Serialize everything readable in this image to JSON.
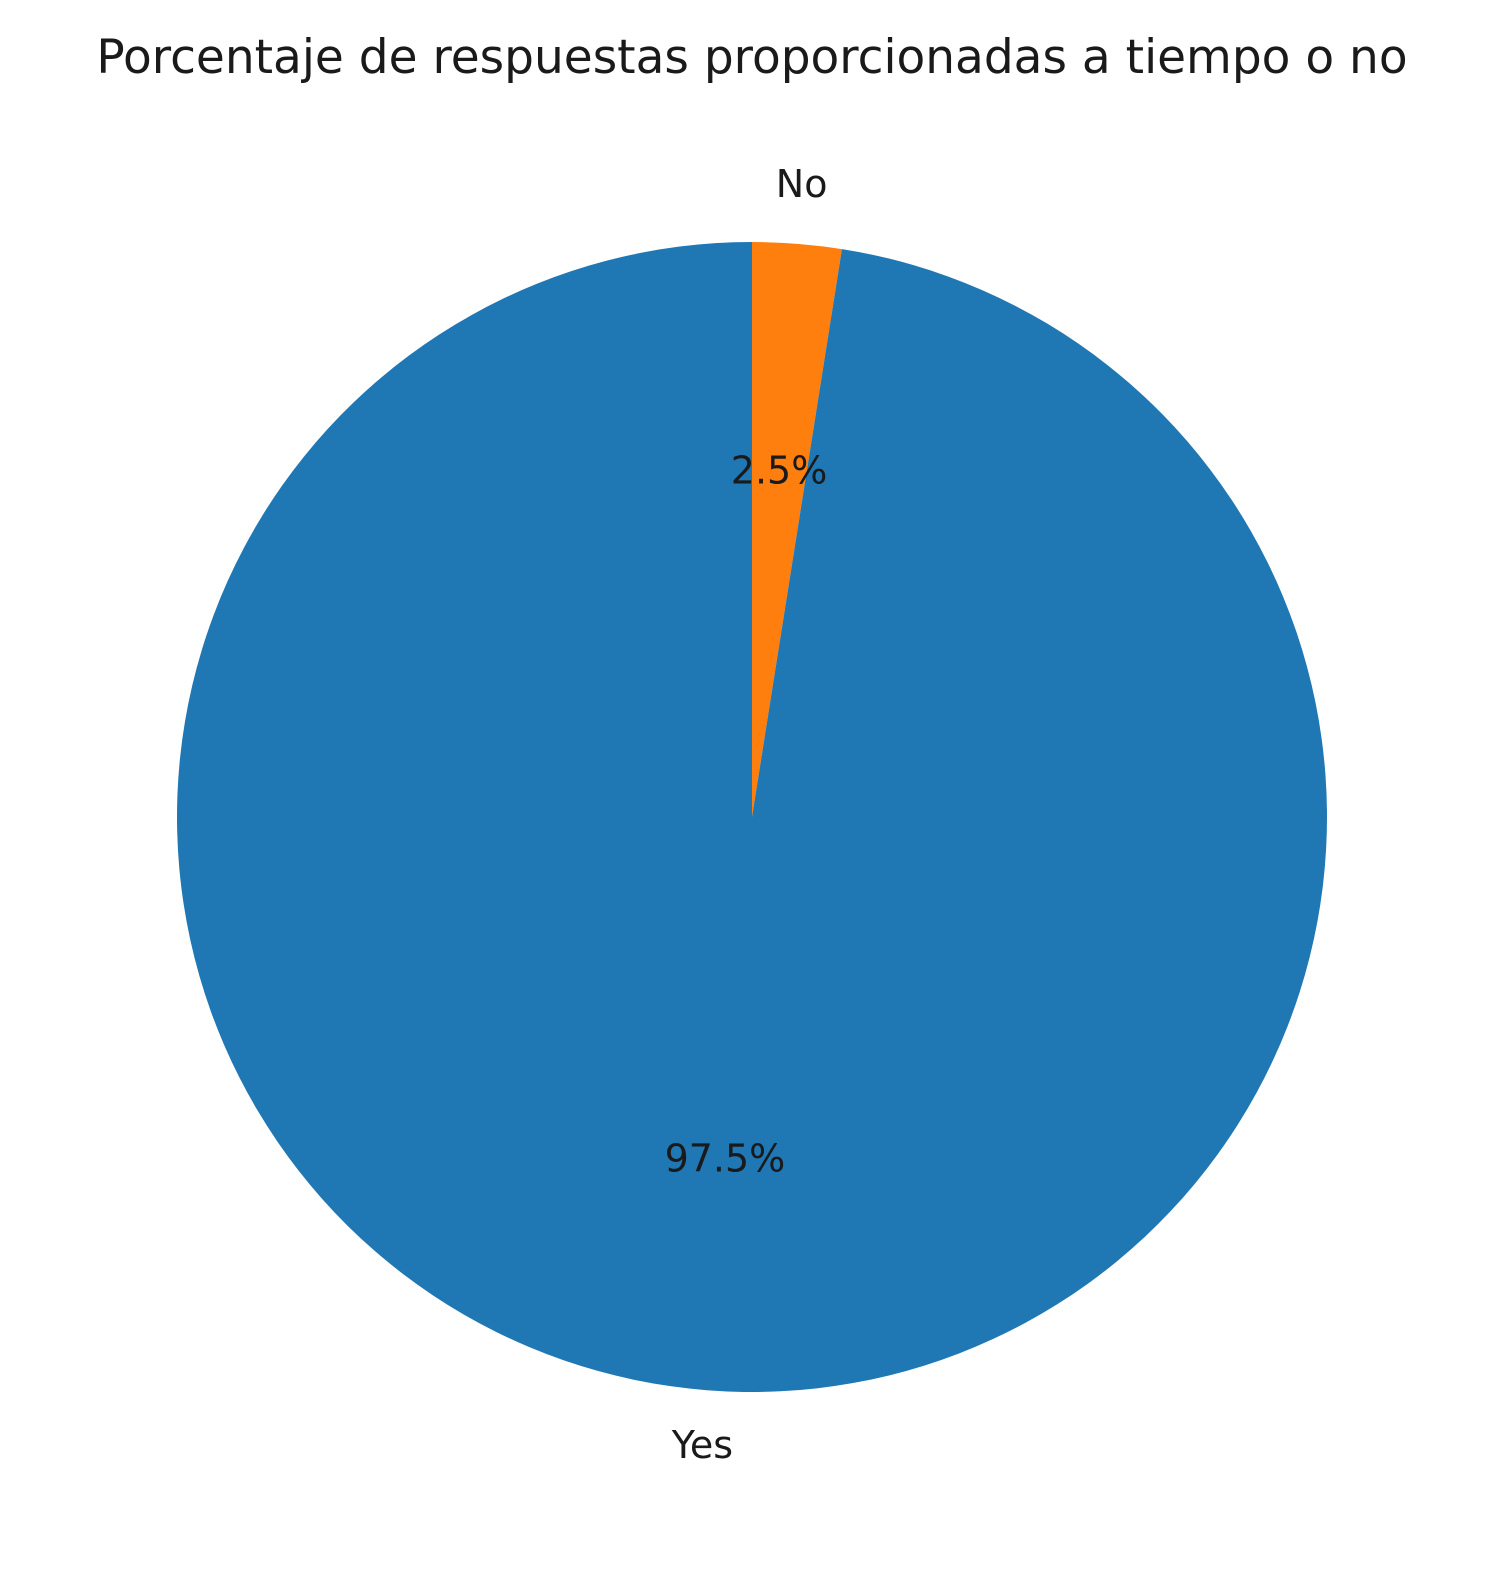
{
  "chart_data": {
    "type": "pie",
    "title": "Porcentaje de respuestas proporcionadas a tiempo o no",
    "categories": [
      "No",
      "Yes"
    ],
    "values": [
      2.5,
      97.5
    ],
    "labels": [
      "2.5%",
      "97.5%"
    ],
    "colors": [
      "#ff7f0e",
      "#1f77b4"
    ],
    "start_angle_deg": 90,
    "direction": "counterclockwise-from-top (matplotlib default order, first slice 'No' clockwise from 12 o'clock)"
  }
}
